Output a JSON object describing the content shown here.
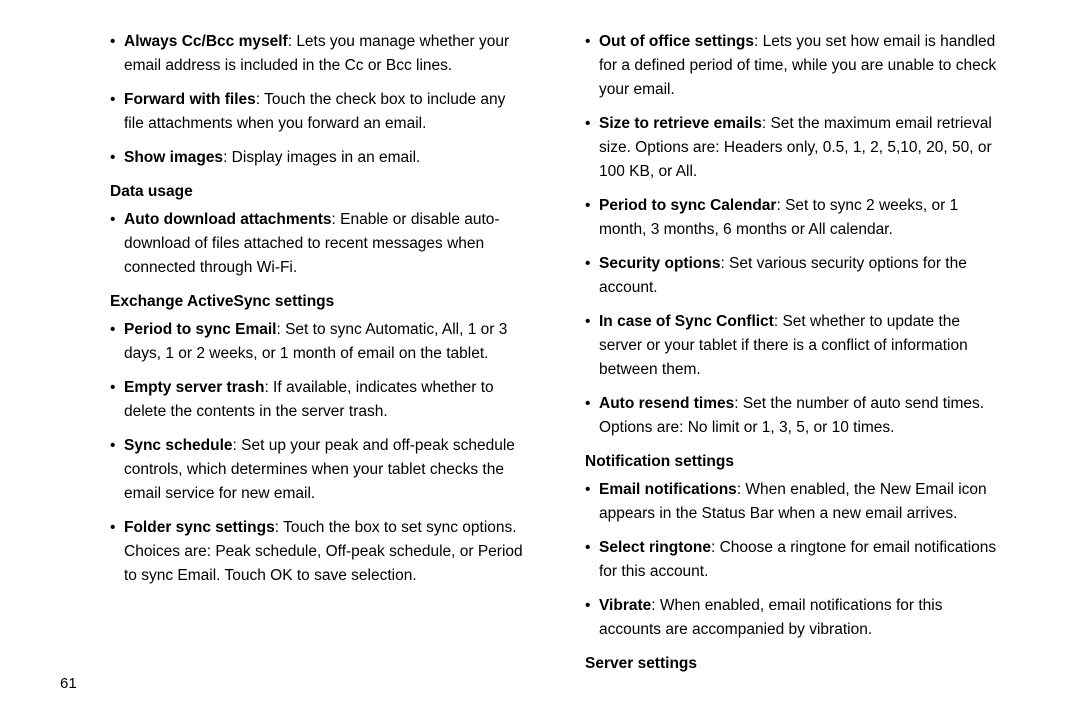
{
  "page_number": "61",
  "left": {
    "items_top": [
      {
        "term": "Always Cc/Bcc myself",
        "desc": ": Lets you manage whether your email address is included in the Cc or Bcc lines."
      },
      {
        "term": "Forward with files",
        "desc": ": Touch the check box to include any file attachments when you forward an email."
      },
      {
        "term": "Show images",
        "desc": ": Display images in an email."
      }
    ],
    "heading_data": "Data usage",
    "items_data": [
      {
        "term": "Auto download attachments",
        "desc": ": Enable or disable auto-download of files attached to recent messages when connected through Wi-Fi."
      }
    ],
    "heading_eas": "Exchange ActiveSync settings",
    "items_eas": [
      {
        "term": "Period to sync Email",
        "desc": ": Set to sync Automatic, All, 1 or 3 days, 1 or 2 weeks, or 1 month of email on the tablet."
      },
      {
        "term": "Empty server trash",
        "desc": ": If available, indicates whether to delete the contents in the server trash."
      },
      {
        "term": "Sync schedule",
        "desc": ": Set up your peak and off-peak schedule controls, which determines when your tablet checks the email service for new email."
      },
      {
        "term": "Folder sync settings",
        "desc": ": Touch the box to set sync options. Choices are: Peak schedule, Off-peak schedule, or Period to sync Email. Touch OK to save selection."
      }
    ]
  },
  "right": {
    "items_eas2": [
      {
        "term": "Out of office settings",
        "desc": ": Lets you set how email is handled for a defined period of time, while you are unable to check your email."
      },
      {
        "term": "Size to retrieve emails",
        "desc": ": Set the maximum email retrieval size. Options are: Headers only, 0.5, 1, 2, 5,10, 20, 50, or 100 KB, or All."
      },
      {
        "term": "Period to sync Calendar",
        "desc": ": Set to sync  2 weeks, or 1 month, 3 months, 6 months or All calendar."
      },
      {
        "term": "Security options",
        "desc": ": Set various security options for the account."
      },
      {
        "term": "In case of Sync Conflict",
        "desc": ": Set whether to update the server or your tablet if there is a conflict of information between them."
      },
      {
        "term": "Auto resend times",
        "desc": ": Set the number of auto send times. Options are: No limit or 1, 3, 5, or 10 times."
      }
    ],
    "heading_notif": "Notification settings",
    "items_notif": [
      {
        "term": "Email notifications",
        "desc": ": When enabled, the New Email icon appears in the Status Bar when a new email arrives."
      },
      {
        "term": "Select ringtone",
        "desc": ": Choose a ringtone for email notifications for this account."
      },
      {
        "term": "Vibrate",
        "desc": ": When enabled, email notifications for this accounts are accompanied by vibration."
      }
    ],
    "heading_server": "Server settings"
  }
}
